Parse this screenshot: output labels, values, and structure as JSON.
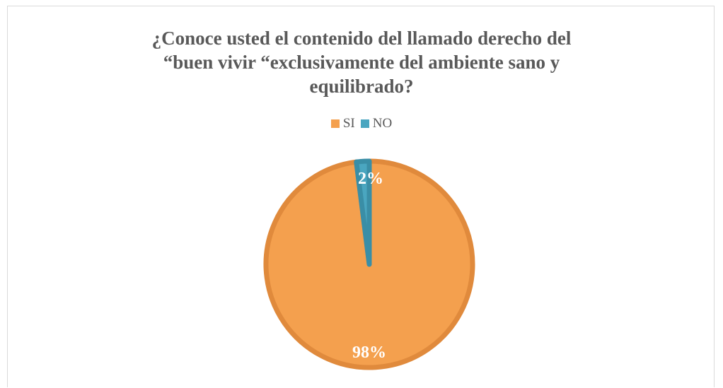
{
  "chart_data": {
    "type": "pie",
    "title_lines": [
      "¿Conoce usted el contenido del llamado derecho del",
      "“buen vivir “exclusivamente del ambiente sano y",
      "equilibrado?"
    ],
    "categories": [
      "SI",
      "NO"
    ],
    "values": [
      98,
      2
    ],
    "data_labels": [
      "98%",
      "2%"
    ],
    "colors": [
      "#f4a04e",
      "#4aa6c0"
    ],
    "edge_colors": [
      "#e08a3c",
      "#3a8ea6"
    ],
    "legend_position": "top"
  }
}
